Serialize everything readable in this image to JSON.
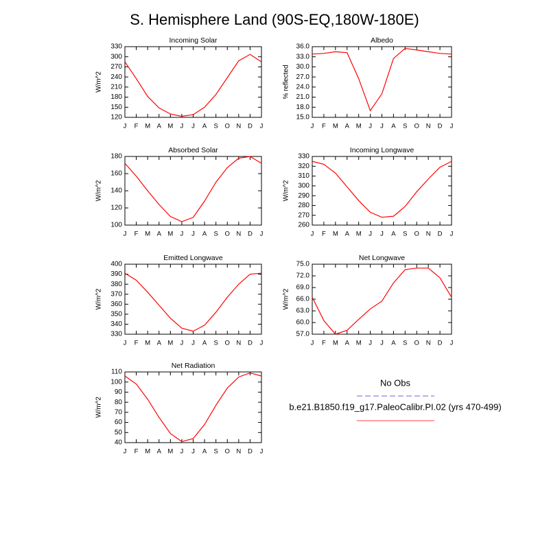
{
  "title": "S. Hemisphere Land (90S-EQ,180W-180E)",
  "legend": {
    "entries": [
      {
        "name": "No Obs",
        "color": "#9999ee",
        "dashed": true
      },
      {
        "name": "b.e21.B1850.f19_g17.PaleoCalibr.PI.02 (yrs 470-499)",
        "color": "#ff8080",
        "dashed": false
      }
    ]
  },
  "chart_data": [
    {
      "type": "line",
      "title": "Incoming Solar",
      "y_label": "W/m^2",
      "color": "#ff0000",
      "categories": [
        "J",
        "F",
        "M",
        "A",
        "M",
        "J",
        "J",
        "A",
        "S",
        "O",
        "N",
        "D",
        "J"
      ],
      "values": [
        285,
        235,
        182,
        148,
        130,
        123,
        128,
        150,
        188,
        238,
        288,
        307,
        285
      ],
      "ylim": [
        120,
        330
      ],
      "yticks": [
        120,
        150,
        180,
        210,
        240,
        270,
        300,
        330
      ]
    },
    {
      "type": "line",
      "title": "Albedo",
      "y_label": "% reflected",
      "color": "#ff0000",
      "categories": [
        "J",
        "F",
        "M",
        "A",
        "M",
        "J",
        "J",
        "A",
        "S",
        "O",
        "N",
        "D",
        "J"
      ],
      "values": [
        33.8,
        34.0,
        34.5,
        34.2,
        26.5,
        17.0,
        22.0,
        32.5,
        35.5,
        35.0,
        34.5,
        34.0,
        33.8
      ],
      "ylim": [
        15,
        36
      ],
      "yticks": [
        {
          "value": 15,
          "label": "15.0"
        },
        {
          "value": 18,
          "label": "18.0"
        },
        {
          "value": 21,
          "label": "21.0"
        },
        {
          "value": 24,
          "label": "24.0"
        },
        {
          "value": 27,
          "label": "27.0"
        },
        {
          "value": 30,
          "label": "30.0"
        },
        {
          "value": 33,
          "label": "33.0"
        },
        {
          "value": 36,
          "label": "36.0"
        }
      ]
    },
    {
      "type": "line",
      "title": "Absorbed Solar",
      "y_label": "W/m^2",
      "color": "#ff0000",
      "categories": [
        "J",
        "F",
        "M",
        "A",
        "M",
        "J",
        "J",
        "A",
        "S",
        "O",
        "N",
        "D",
        "J"
      ],
      "values": [
        172,
        157,
        140,
        124,
        110,
        104,
        109,
        128,
        150,
        167,
        178,
        180,
        172
      ],
      "ylim": [
        100,
        180
      ],
      "yticks": [
        100,
        120,
        140,
        160,
        180
      ]
    },
    {
      "type": "line",
      "title": "Incoming Longwave",
      "y_label": "W/m^2",
      "color": "#ff0000",
      "categories": [
        "J",
        "F",
        "M",
        "A",
        "M",
        "J",
        "J",
        "A",
        "S",
        "O",
        "N",
        "D",
        "J"
      ],
      "values": [
        325,
        322,
        313,
        299,
        285,
        273,
        268,
        269,
        279,
        294,
        307,
        319,
        325
      ],
      "ylim": [
        260,
        330
      ],
      "yticks": [
        260,
        270,
        280,
        290,
        300,
        310,
        320,
        330
      ]
    },
    {
      "type": "line",
      "title": "Emitted Longwave",
      "y_label": "W/m^2",
      "color": "#ff0000",
      "categories": [
        "J",
        "F",
        "M",
        "A",
        "M",
        "J",
        "J",
        "A",
        "S",
        "O",
        "N",
        "D",
        "J"
      ],
      "values": [
        391,
        384,
        372,
        359,
        346,
        336,
        333,
        339,
        352,
        367,
        380,
        390,
        391
      ],
      "ylim": [
        330,
        400
      ],
      "yticks": [
        330,
        340,
        350,
        360,
        370,
        380,
        390,
        400
      ]
    },
    {
      "type": "line",
      "title": "Net Longwave",
      "y_label": "W/m^2",
      "color": "#ff0000",
      "categories": [
        "J",
        "F",
        "M",
        "A",
        "M",
        "J",
        "J",
        "A",
        "S",
        "O",
        "N",
        "D",
        "J"
      ],
      "values": [
        66.5,
        60.5,
        57.0,
        58.0,
        60.8,
        63.5,
        65.5,
        70.2,
        73.6,
        74.0,
        74.0,
        71.5,
        66.5
      ],
      "ylim": [
        57,
        75
      ],
      "yticks": [
        {
          "value": 57,
          "label": "57.0"
        },
        {
          "value": 60,
          "label": "60.0"
        },
        {
          "value": 63,
          "label": "63.0"
        },
        {
          "value": 66,
          "label": "66.0"
        },
        {
          "value": 69,
          "label": "69.0"
        },
        {
          "value": 72,
          "label": "72.0"
        },
        {
          "value": 75,
          "label": "75.0"
        }
      ]
    },
    {
      "type": "line",
      "title": "Net Radiation",
      "y_label": "W/m^2",
      "color": "#ff0000",
      "categories": [
        "J",
        "F",
        "M",
        "A",
        "M",
        "J",
        "J",
        "A",
        "S",
        "O",
        "N",
        "D",
        "J"
      ],
      "values": [
        106,
        98,
        83,
        65,
        49,
        41,
        44,
        58,
        77,
        94,
        105,
        109,
        106
      ],
      "ylim": [
        40,
        110
      ],
      "yticks": [
        40,
        50,
        60,
        70,
        80,
        90,
        100,
        110
      ]
    }
  ]
}
